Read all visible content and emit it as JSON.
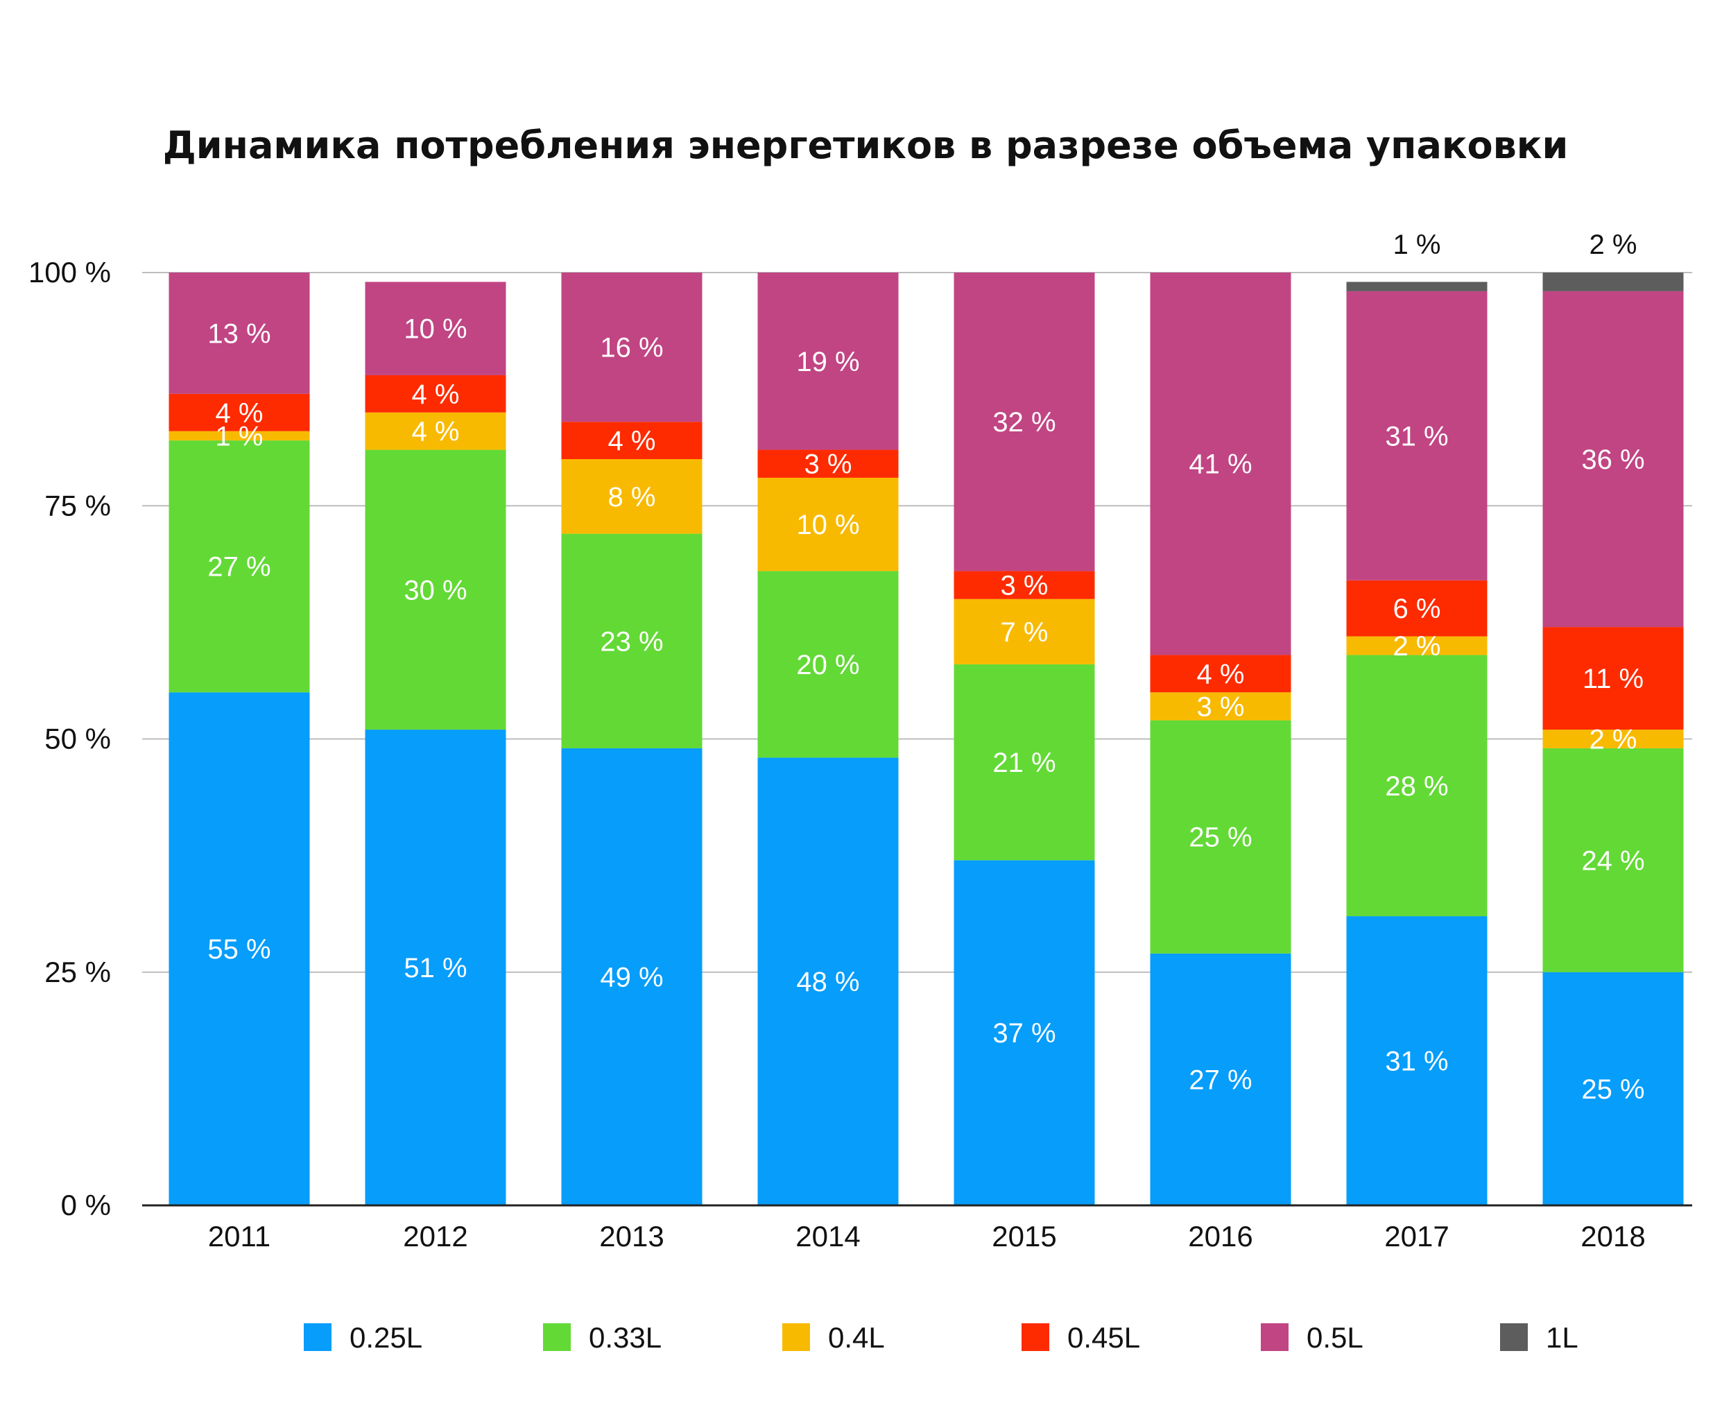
{
  "chart_data": {
    "type": "bar",
    "stacked": true,
    "title": "Динамика  потребления энергетиков  в разрезе объема упаковки",
    "xlabel": "",
    "ylabel": "",
    "ylim": [
      0,
      100
    ],
    "y_ticks": [
      "0 %",
      "25 %",
      "50 %",
      "75 %",
      "100 %"
    ],
    "y_tick_values": [
      0,
      25,
      50,
      75,
      100
    ],
    "value_suffix": " %",
    "categories": [
      "2011",
      "2012",
      "2013",
      "2014",
      "2015",
      "2016",
      "2017",
      "2018"
    ],
    "series": [
      {
        "name": "0.25L",
        "color": "#069dfb",
        "values": [
          55,
          51,
          49,
          48,
          37,
          27,
          31,
          25
        ]
      },
      {
        "name": "0.33L",
        "color": "#63d936",
        "values": [
          27,
          30,
          23,
          20,
          21,
          25,
          28,
          24
        ]
      },
      {
        "name": "0.4L",
        "color": "#f8ba00",
        "values": [
          1,
          4,
          8,
          10,
          7,
          3,
          2,
          2
        ]
      },
      {
        "name": "0.45L",
        "color": "#fe2b00",
        "values": [
          4,
          4,
          4,
          3,
          3,
          4,
          6,
          11
        ]
      },
      {
        "name": "0.5L",
        "color": "#c14583",
        "values": [
          13,
          10,
          16,
          19,
          32,
          41,
          31,
          36
        ]
      },
      {
        "name": "1L",
        "color": "#5d5d5d",
        "values": [
          0,
          0,
          0,
          0,
          0,
          0,
          1,
          2
        ]
      }
    ],
    "legend": "bottom",
    "grid": true
  }
}
